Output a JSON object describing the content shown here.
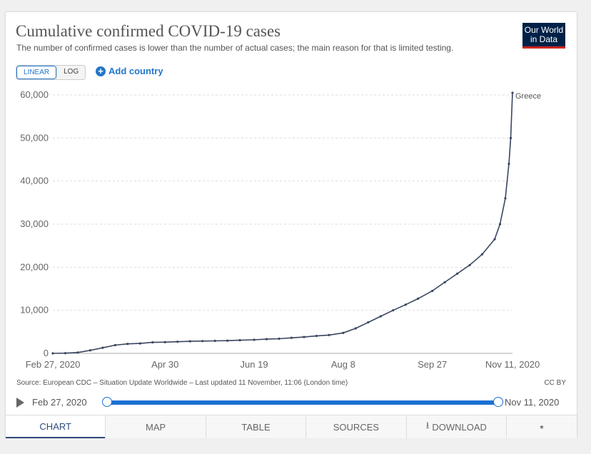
{
  "header": {
    "title": "Cumulative confirmed COVID-19 cases",
    "subtitle": "The number of confirmed cases is lower than the number of actual cases; the main reason for that is limited testing.",
    "logo_line1": "Our World",
    "logo_line2": "in Data"
  },
  "controls": {
    "linear_label": "LINEAR",
    "log_label": "LOG",
    "add_country_label": "Add country"
  },
  "chart_data": {
    "type": "line",
    "x_labels": [
      "Feb 27, 2020",
      "Apr 30",
      "Jun 19",
      "Aug 8",
      "Sep 27",
      "Nov 11, 2020"
    ],
    "x_label_days": [
      0,
      63,
      113,
      163,
      213,
      258
    ],
    "y_ticks": [
      0,
      10000,
      20000,
      30000,
      40000,
      50000,
      60000
    ],
    "y_tick_labels": [
      "0",
      "10,000",
      "20,000",
      "30,000",
      "40,000",
      "50,000",
      "60,000"
    ],
    "ylim": [
      0,
      60000
    ],
    "grid": true,
    "series": [
      {
        "name": "Greece",
        "color": "#3a4660",
        "points": [
          [
            0,
            0
          ],
          [
            7,
            50
          ],
          [
            14,
            200
          ],
          [
            21,
            700
          ],
          [
            28,
            1300
          ],
          [
            35,
            1900
          ],
          [
            42,
            2200
          ],
          [
            49,
            2300
          ],
          [
            56,
            2550
          ],
          [
            63,
            2600
          ],
          [
            70,
            2700
          ],
          [
            77,
            2800
          ],
          [
            84,
            2850
          ],
          [
            91,
            2900
          ],
          [
            98,
            2950
          ],
          [
            105,
            3050
          ],
          [
            113,
            3150
          ],
          [
            120,
            3300
          ],
          [
            127,
            3400
          ],
          [
            134,
            3600
          ],
          [
            141,
            3800
          ],
          [
            148,
            4050
          ],
          [
            155,
            4250
          ],
          [
            163,
            4750
          ],
          [
            170,
            5800
          ],
          [
            177,
            7200
          ],
          [
            184,
            8600
          ],
          [
            191,
            10000
          ],
          [
            198,
            11300
          ],
          [
            205,
            12700
          ],
          [
            213,
            14500
          ],
          [
            220,
            16500
          ],
          [
            227,
            18500
          ],
          [
            234,
            20500
          ],
          [
            241,
            23000
          ],
          [
            248,
            26500
          ],
          [
            251,
            30000
          ],
          [
            254,
            36000
          ],
          [
            256,
            44000
          ],
          [
            257,
            50000
          ],
          [
            258,
            60500
          ]
        ]
      }
    ]
  },
  "footer": {
    "source": "Source: European CDC – Situation Update Worldwide – Last updated 11 November, 11:06 (London time)",
    "license": "CC BY"
  },
  "timeline": {
    "start": "Feb 27, 2020",
    "end": "Nov 11, 2020"
  },
  "tabs": [
    {
      "label": "CHART"
    },
    {
      "label": "MAP"
    },
    {
      "label": "TABLE"
    },
    {
      "label": "SOURCES"
    },
    {
      "label": "DOWNLOAD"
    }
  ]
}
